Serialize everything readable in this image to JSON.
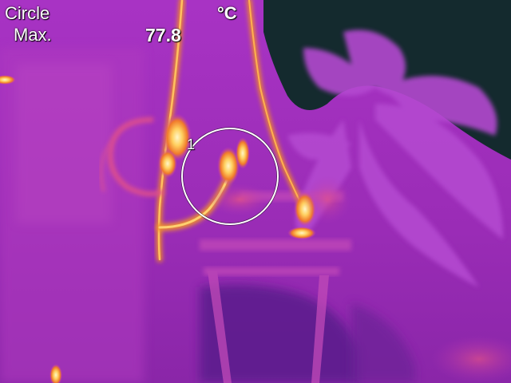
{
  "overlay": {
    "mode": "Circle",
    "statistic": "Max.",
    "value": "77.8",
    "unit": "°C",
    "roi_index": "1"
  },
  "palette": {
    "sky": "#142a2e",
    "cold": "#5a1f8c",
    "mid": "#9a2fb8",
    "warm": "#c23ab8",
    "hot": "#f08a28",
    "hottest": "#fff2b0",
    "roi_ring": "#ffffff"
  }
}
